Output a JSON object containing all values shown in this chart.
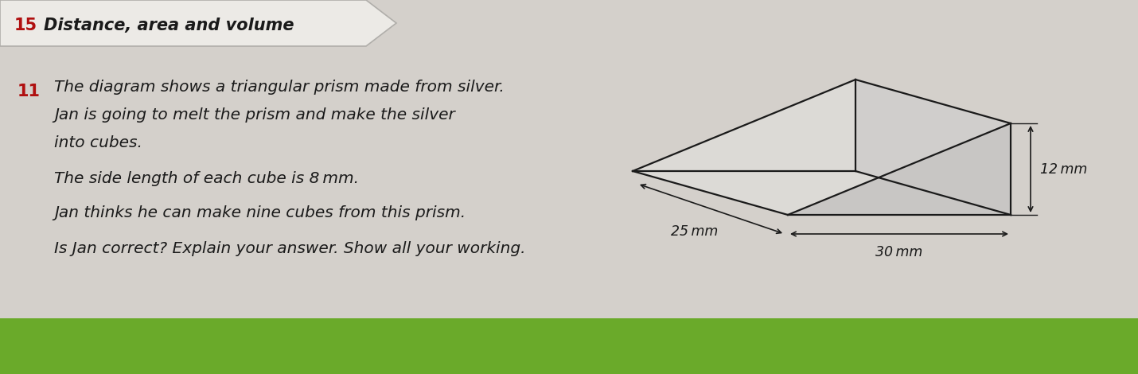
{
  "page_bg": "#d4d0cb",
  "green_bg": "#6aaa2a",
  "header_text_15": "15",
  "header_text_main": "Distance, area and volume",
  "question_number": "11",
  "line1": "The diagram shows a triangular prism made from silver.",
  "line2": "Jan is going to melt the prism and make the silver",
  "line3": "into cubes.",
  "line4": "The side length of each cube is 8 mm.",
  "line5": "Jan thinks he can make nine cubes from this prism.",
  "line6": "Is Jan correct? Explain your answer. Show all your working.",
  "dim_25": "25 mm",
  "dim_30": "30 mm",
  "dim_12": "12 mm",
  "prism_lw": 1.6,
  "text_color": "#1a1a1a",
  "red_color": "#b01010",
  "header_fill": "#eceae6",
  "header_border": "#b0aeaa"
}
